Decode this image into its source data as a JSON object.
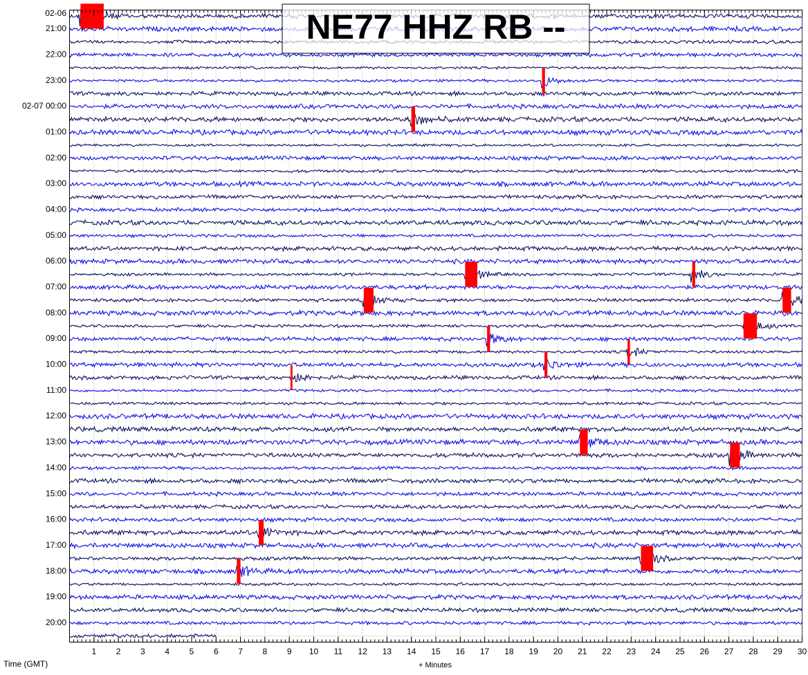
{
  "chart_data": {
    "type": "helicorder",
    "title": "NE77 HHZ RB --",
    "x_label": "+ Minutes",
    "y_label": "Time (GMT)",
    "y_labels": [
      "02-06",
      "21:00",
      "22:00",
      "23:00",
      "02-07 00:00",
      "01:00",
      "02:00",
      "03:00",
      "04:00",
      "05:00",
      "06:00",
      "07:00",
      "08:00",
      "09:00",
      "10:00",
      "11:00",
      "12:00",
      "13:00",
      "14:00",
      "15:00",
      "16:00",
      "17:00",
      "18:00",
      "19:00",
      "20:00"
    ],
    "xlim": [
      0,
      30
    ],
    "xticks": [
      1,
      2,
      3,
      4,
      5,
      6,
      7,
      8,
      9,
      10,
      11,
      12,
      13,
      14,
      15,
      16,
      17,
      18,
      19,
      20,
      21,
      22,
      23,
      24,
      25,
      26,
      27,
      28,
      29,
      30
    ],
    "trace_colors": [
      "#00005a",
      "#0000e6"
    ],
    "clip_color": "#ff0000",
    "grid": true,
    "events": [
      {
        "row": 0,
        "minute": 0.45,
        "duration": 0.95
      },
      {
        "row": 5,
        "minute": 19.35,
        "duration": 0.12
      },
      {
        "row": 8,
        "minute": 14.0,
        "duration": 0.15
      },
      {
        "row": 20,
        "minute": 16.2,
        "duration": 0.5
      },
      {
        "row": 20,
        "minute": 25.5,
        "duration": 0.12
      },
      {
        "row": 22,
        "minute": 12.05,
        "duration": 0.4
      },
      {
        "row": 22,
        "minute": 29.2,
        "duration": 0.35
      },
      {
        "row": 24,
        "minute": 27.6,
        "duration": 0.55
      },
      {
        "row": 25,
        "minute": 17.1,
        "duration": 0.12
      },
      {
        "row": 26,
        "minute": 22.85,
        "duration": 0.1
      },
      {
        "row": 27,
        "minute": 19.45,
        "duration": 0.12
      },
      {
        "row": 28,
        "minute": 9.05,
        "duration": 0.08
      },
      {
        "row": 33,
        "minute": 20.9,
        "duration": 0.32
      },
      {
        "row": 34,
        "minute": 27.05,
        "duration": 0.4
      },
      {
        "row": 40,
        "minute": 7.75,
        "duration": 0.2
      },
      {
        "row": 42,
        "minute": 23.4,
        "duration": 0.5
      },
      {
        "row": 43,
        "minute": 6.85,
        "duration": 0.15
      }
    ]
  }
}
